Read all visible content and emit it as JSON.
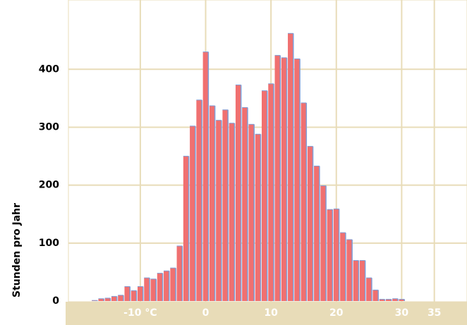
{
  "chart_data": {
    "type": "histogram",
    "y_label": "Stunden pro Jahr",
    "bins": [
      -17.5,
      -16.5,
      -15.5,
      -14.5,
      -13.5,
      -12.5,
      -11.5,
      -10.5,
      -9.5,
      -8.5,
      -7.5,
      -6.5,
      -5.5,
      -4.5,
      -3.5,
      -2.5,
      -1.5,
      -0.5,
      0.5,
      1.5,
      2.5,
      3.5,
      4.5,
      5.5,
      6.5,
      7.5,
      8.5,
      9.5,
      10.5,
      11.5,
      12.5,
      13.5,
      14.5,
      15.5,
      16.5,
      17.5,
      18.5,
      19.5,
      20.5,
      21.5,
      22.5,
      23.5,
      24.5,
      25.5,
      26.5,
      27.5,
      28.5,
      29.5,
      30.5
    ],
    "values": [
      1,
      4,
      5,
      8,
      10,
      25,
      18,
      25,
      40,
      38,
      48,
      52,
      57,
      95,
      250,
      302,
      347,
      430,
      337,
      312,
      330,
      307,
      373,
      334,
      305,
      288,
      363,
      375,
      424,
      420,
      462,
      418,
      342,
      267,
      233,
      199,
      158,
      159,
      118,
      106,
      70,
      70,
      40,
      19,
      3,
      3,
      4,
      3
    ],
    "color": "#f07070",
    "xlim": [
      -21,
      40
    ],
    "ylim": [
      0,
      505
    ],
    "xticks": [
      {
        "value": -10,
        "label": "-10 °C"
      },
      0,
      10,
      20,
      30,
      35
    ],
    "yticks": [
      0,
      100,
      200,
      300,
      400
    ],
    "grid": true
  }
}
